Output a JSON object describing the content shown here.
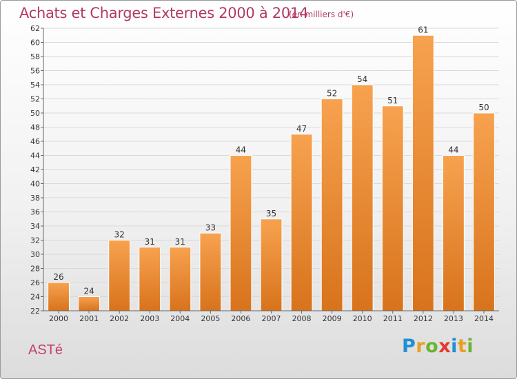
{
  "header": {
    "title": "Achats et Charges Externes 2000 à 2014",
    "subtitle": "(en milliers d'€)"
  },
  "footer": {
    "commune": "ASTé",
    "logo_letters": [
      "P",
      "r",
      "o",
      "x",
      "i",
      "t",
      "i"
    ],
    "logo_colors": [
      "#1f8fd6",
      "#e8a020",
      "#6bb52e",
      "#e23a2e",
      "#1f8fd6",
      "#e8a020",
      "#6bb52e"
    ]
  },
  "colors": {
    "bar_top": "#f7a24f",
    "bar_bottom": "#d8731c",
    "title": "#b23a5e",
    "grid": "#d9d9d9"
  },
  "chart_data": {
    "type": "bar",
    "title": "Achats et Charges Externes 2000 à 2014",
    "subtitle": "(en milliers d'€)",
    "categories": [
      "2000",
      "2001",
      "2002",
      "2003",
      "2004",
      "2005",
      "2006",
      "2007",
      "2008",
      "2009",
      "2010",
      "2011",
      "2012",
      "2013",
      "2014"
    ],
    "values": [
      26,
      24,
      32,
      31,
      31,
      33,
      44,
      35,
      47,
      52,
      54,
      51,
      61,
      44,
      50
    ],
    "ylim": [
      22,
      62
    ],
    "yticks": [
      22,
      24,
      26,
      28,
      30,
      32,
      34,
      36,
      38,
      40,
      42,
      44,
      46,
      48,
      50,
      52,
      54,
      56,
      58,
      60,
      62
    ],
    "grid": true,
    "xlabel": "",
    "ylabel": ""
  }
}
